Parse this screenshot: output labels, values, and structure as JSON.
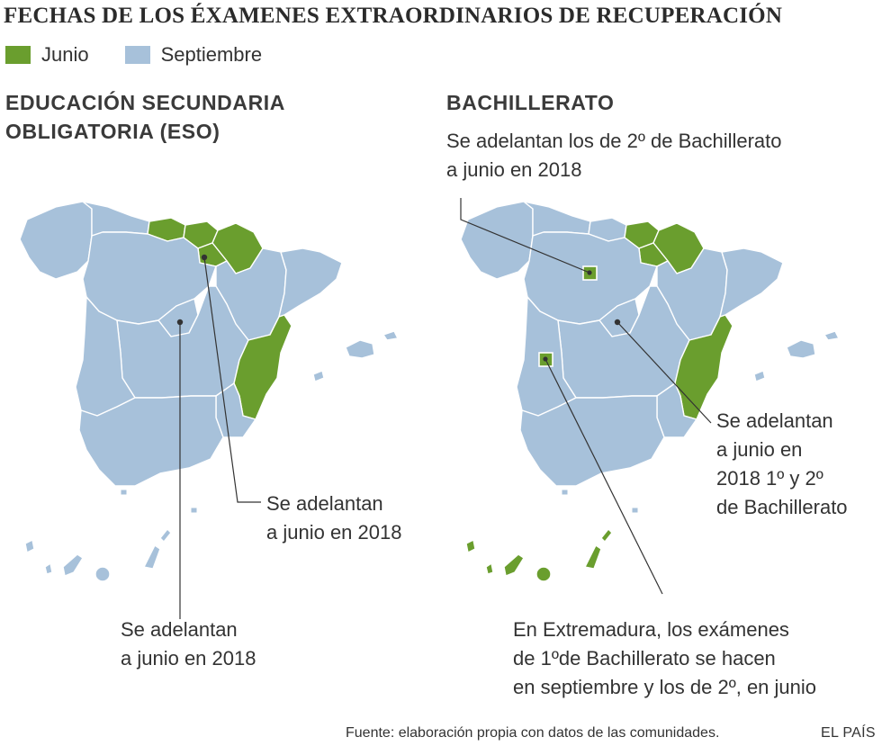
{
  "title": "FECHAS DE LOS ÉXAMENES EXTRAORDINARIOS DE RECUPERACIÓN",
  "legend": [
    {
      "label": "Junio",
      "color": "#6a9e2e"
    },
    {
      "label": "Septiembre",
      "color": "#a7c1da"
    }
  ],
  "eso": {
    "heading": "EDUCACIÓN SECUNDARIA\nOBLIGATORIA (ESO)",
    "note_north": "Se adelantan\na junio en 2018",
    "note_madrid": "Se adelantan\na junio en 2018",
    "junio_regions": [
      "Cantabria",
      "País Vasco",
      "La Rioja",
      "Navarra",
      "Comunidad Valenciana"
    ]
  },
  "bachillerato": {
    "heading": "BACHILLERATO",
    "subtitle": "Se adelantan los de 2º de Bachillerato\na junio en 2018",
    "note_madrid": "Se adelantan\na junio en\n2018 1º y 2º\nde Bachillerato",
    "note_extremadura": "En Extremadura, los exámenes\nde 1ºde Bachillerato se hacen\nen septiembre y los de 2º, en junio",
    "junio_regions": [
      "País Vasco",
      "La Rioja",
      "Navarra",
      "Comunidad Valenciana",
      "Canarias"
    ]
  },
  "colors": {
    "junio": "#6a9e2e",
    "septiembre": "#a7c1da"
  },
  "source": "Fuente: elaboración propia con datos de las comunidades.",
  "brand": "EL PAÍS"
}
